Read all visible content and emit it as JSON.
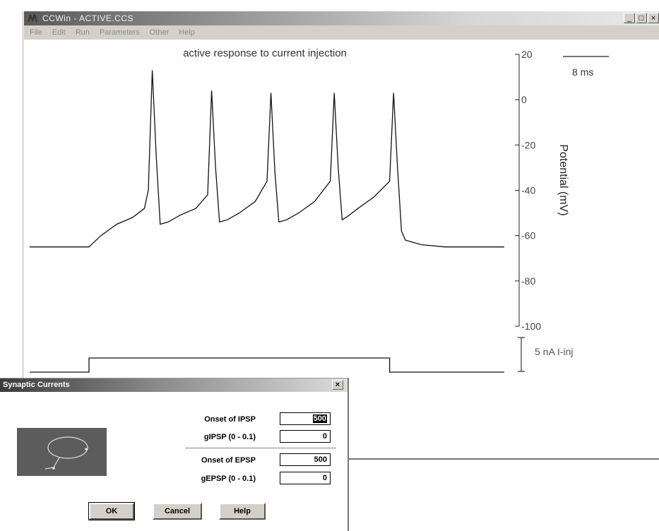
{
  "window": {
    "title": "CCWin - ACTIVE.CCS",
    "controls": [
      "_",
      "□",
      "×"
    ]
  },
  "menu": {
    "items": [
      "File",
      "Edit",
      "Run",
      "Parameters",
      "Other",
      "Help"
    ]
  },
  "plot": {
    "title": "active response to current injection",
    "y_axis_label": "Potential (mV)",
    "y_ticks": [
      "20",
      "0",
      "-20",
      "-40",
      "-60",
      "-80",
      "-100"
    ],
    "time_scale_label": "8 ms",
    "current_scale_label": "5 nA I-inj"
  },
  "chart_data": {
    "type": "line",
    "title": "active response to current injection",
    "ylabel": "Potential (mV)",
    "ylim": [
      -100,
      20
    ],
    "y_ticks": [
      20,
      0,
      -20,
      -40,
      -60,
      -80,
      -100
    ],
    "series": [
      {
        "values_note_free": true,
        "t": [
          0,
          15,
          18,
          22,
          26,
          29,
          30,
          31,
          32,
          33,
          35,
          38,
          42,
          45,
          46,
          47,
          48,
          50,
          53,
          57,
          60,
          61,
          62,
          63,
          65,
          68,
          72,
          76,
          77,
          78,
          79,
          80,
          83,
          87,
          91,
          92,
          93,
          94,
          95,
          99,
          105,
          111,
          120
        ],
        "v": [
          -65,
          -65,
          -60,
          -55,
          -52,
          -48,
          -40,
          13,
          -25,
          -55,
          -54,
          -51,
          -48,
          -42,
          4,
          -30,
          -54,
          -53,
          -50,
          -45,
          -36,
          3,
          -32,
          -54,
          -53,
          -50,
          -45,
          -36,
          3,
          -30,
          -53,
          -52,
          -48,
          -43,
          -36,
          3,
          -30,
          -58,
          -62,
          -64,
          -65,
          -65,
          -65
        ]
      }
    ],
    "current_injection": {
      "baseline": 0,
      "step_on": 15,
      "step_off": 91,
      "amplitude": 5
    }
  },
  "dialog": {
    "title": "Synaptic Currents",
    "close": "×",
    "fields": [
      {
        "label": "Onset of IPSP",
        "value": "500"
      },
      {
        "label": "gIPSP (0 - 0.1)",
        "value": "0"
      },
      {
        "label": "Onset of EPSP",
        "value": "500"
      },
      {
        "label": "gEPSP (0 - 0.1)",
        "value": "0"
      }
    ],
    "buttons": {
      "ok": "OK",
      "cancel": "Cancel",
      "help": "Help"
    }
  }
}
